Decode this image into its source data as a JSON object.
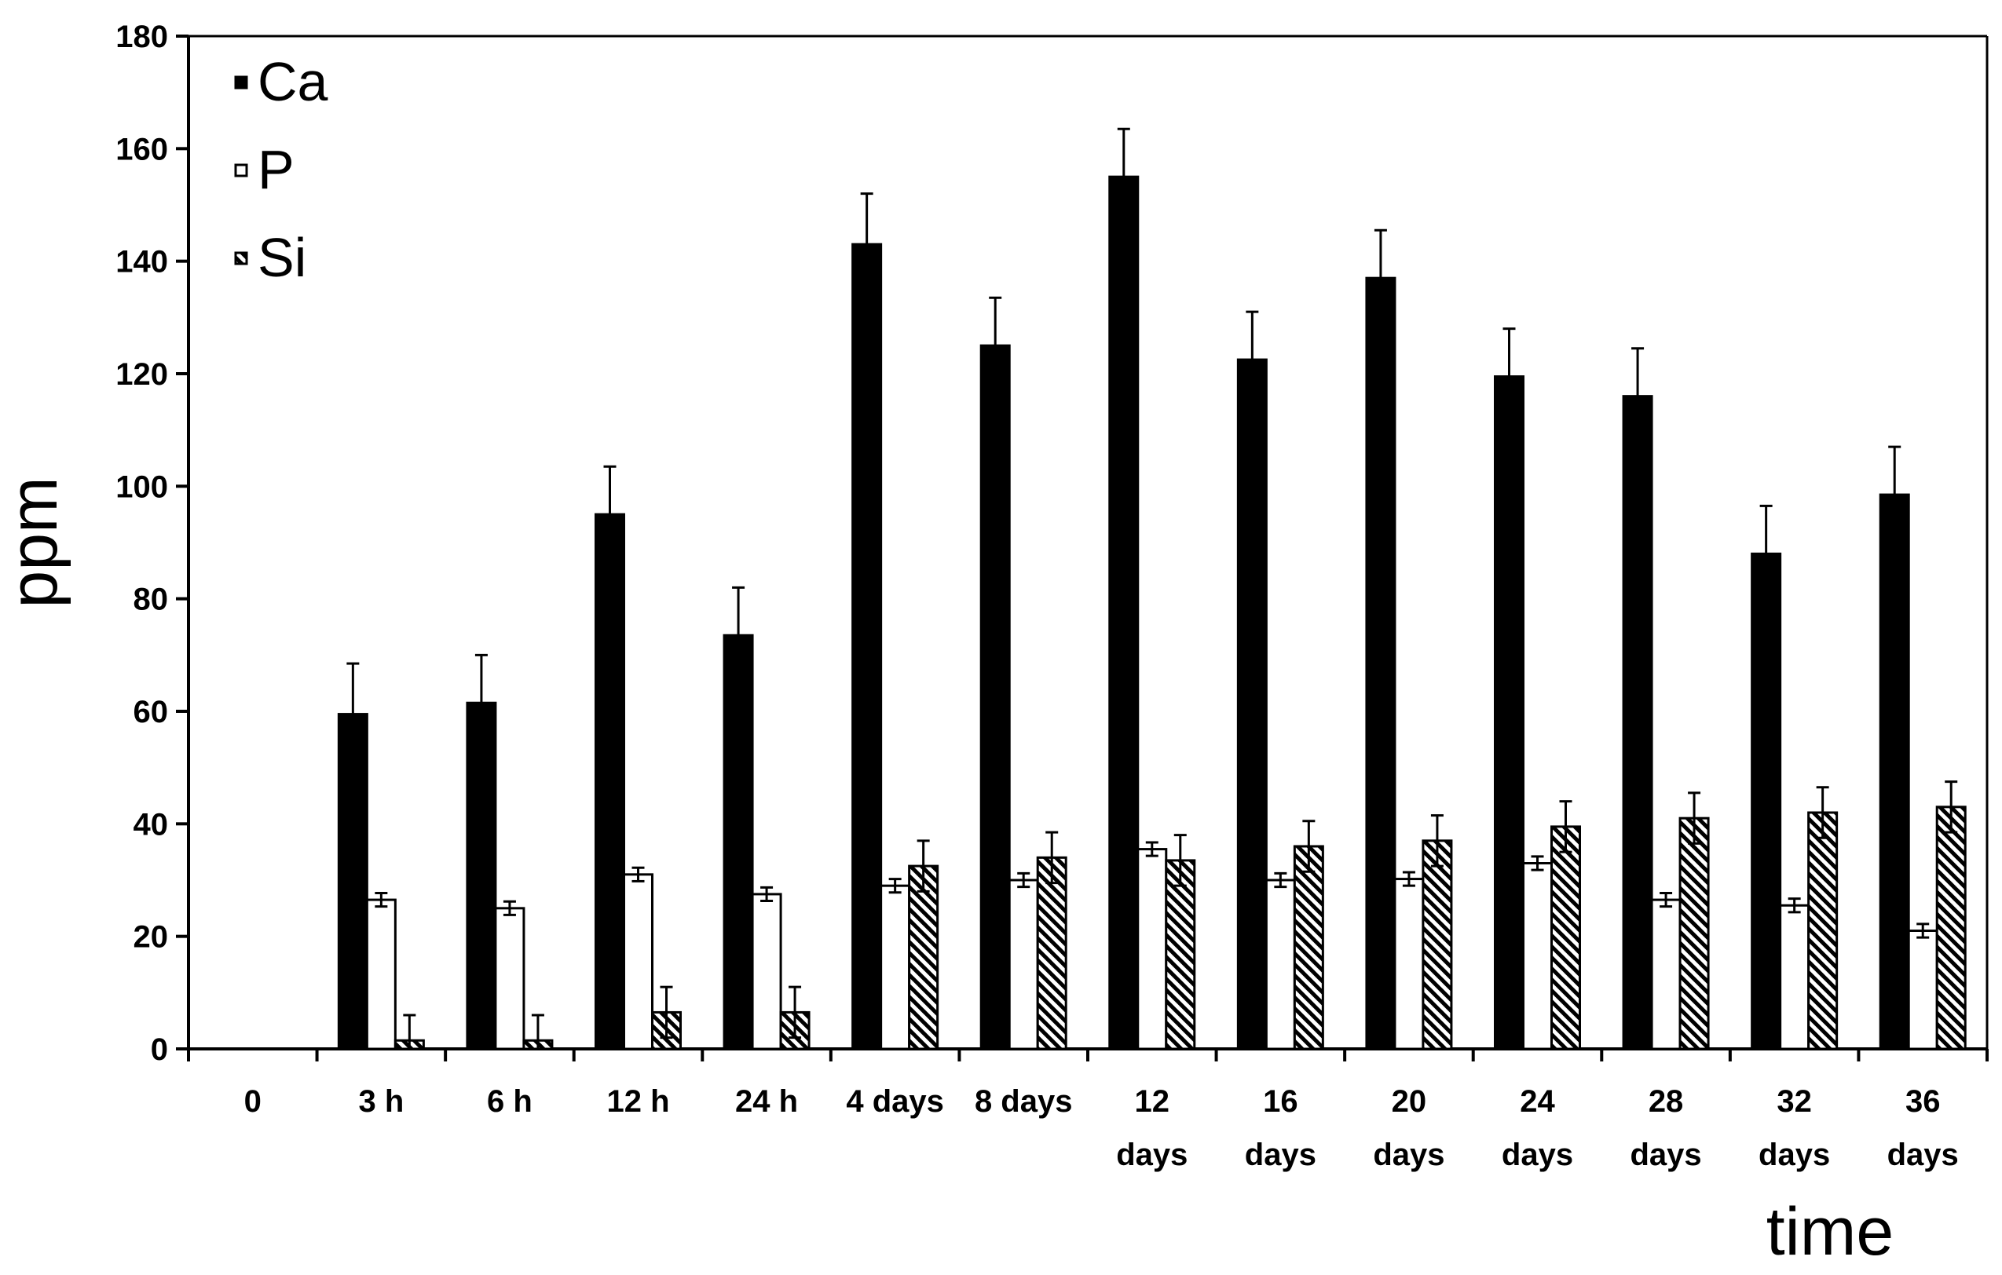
{
  "colors": {
    "Ca": "#000000",
    "P": "#ffffff",
    "Si": "hatched"
  },
  "chart_data": {
    "type": "bar",
    "ylabel": "ppm",
    "xlabel": "time",
    "ylim": [
      0,
      180
    ],
    "yticks": [
      0,
      20,
      40,
      60,
      80,
      100,
      120,
      140,
      160,
      180
    ],
    "categories": [
      [
        "0"
      ],
      [
        "3 h"
      ],
      [
        "6 h"
      ],
      [
        "12 h"
      ],
      [
        "24 h"
      ],
      [
        "4 days"
      ],
      [
        "8 days"
      ],
      [
        "12",
        "days"
      ],
      [
        "16",
        "days"
      ],
      [
        "20",
        "days"
      ],
      [
        "24",
        "days"
      ],
      [
        "28",
        "days"
      ],
      [
        "32",
        "days"
      ],
      [
        "36",
        "days"
      ]
    ],
    "legend_position": "top-left",
    "grid": false,
    "series": [
      {
        "name": "Ca",
        "values": [
          0,
          59.5,
          61.5,
          95,
          73.5,
          143,
          125,
          155,
          122.5,
          137,
          119.5,
          116,
          88,
          98.5
        ],
        "errors": [
          0,
          9,
          8.5,
          8.5,
          8.5,
          9,
          8.5,
          8.5,
          8.5,
          8.5,
          8.5,
          8.5,
          8.5,
          8.5
        ]
      },
      {
        "name": "P",
        "values": [
          0,
          26.5,
          25,
          31,
          27.5,
          29,
          30,
          35.5,
          30,
          30.2,
          33,
          26.5,
          25.5,
          21
        ],
        "errors": [
          0,
          1.2,
          1.2,
          1.2,
          1.2,
          1.2,
          1.2,
          1.2,
          1.2,
          1.2,
          1.2,
          1.2,
          1.2,
          1.2
        ]
      },
      {
        "name": "Si",
        "values": [
          0,
          1.5,
          1.5,
          6.5,
          6.5,
          32.5,
          34,
          33.5,
          36,
          37,
          39.5,
          41,
          42,
          43
        ],
        "errors": [
          0,
          4.5,
          4.5,
          4.5,
          4.5,
          4.5,
          4.5,
          4.5,
          4.5,
          4.5,
          4.5,
          4.5,
          4.5,
          4.5
        ]
      }
    ]
  }
}
